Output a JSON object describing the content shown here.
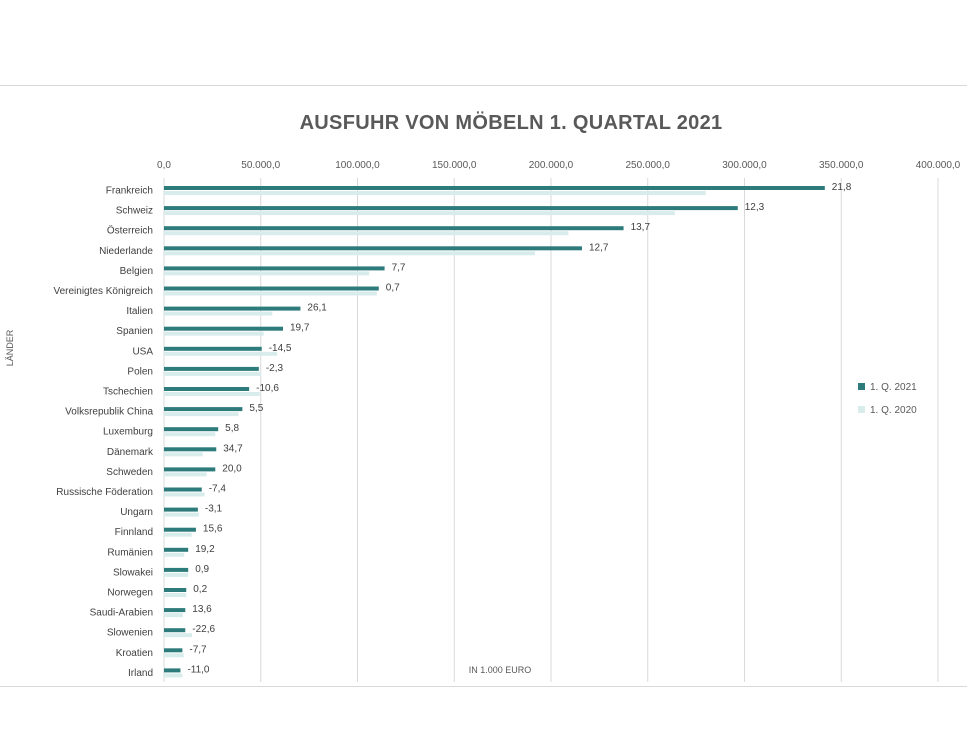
{
  "chart_data": {
    "type": "bar",
    "orientation": "horizontal",
    "title": "AUSFUHR VON MÖBELN 1. QUARTAL 2021",
    "ylabel": "LÄNDER",
    "xlabel": "IN 1.000 EURO",
    "xlim": [
      0,
      400000
    ],
    "x_ticks": [
      "0,0",
      "50.000,0",
      "100.000,0",
      "150.000,0",
      "200.000,0",
      "250.000,0",
      "300.000,0",
      "350.000,0",
      "400.000,0"
    ],
    "x_tick_values": [
      0,
      50000,
      100000,
      150000,
      200000,
      250000,
      300000,
      350000,
      400000
    ],
    "grid": true,
    "legend_position": "right",
    "categories": [
      "Frankreich",
      "Schweiz",
      "Österreich",
      "Niederlande",
      "Belgien",
      "Vereinigtes Königreich",
      "Italien",
      "Spanien",
      "USA",
      "Polen",
      "Tschechien",
      "Volksrepublik China",
      "Luxemburg",
      "Dänemark",
      "Schweden",
      "Russische Föderation",
      "Ungarn",
      "Finnland",
      "Rumänien",
      "Slowakei",
      "Norwegen",
      "Saudi-Arabien",
      "Slowenien",
      "Kroatien",
      "Irland"
    ],
    "series": [
      {
        "name": "1. Q. 2021",
        "color": "#2e7b7b",
        "values": [
          341500,
          296500,
          237500,
          216000,
          114000,
          111000,
          70500,
          61500,
          50500,
          49000,
          44000,
          40500,
          28000,
          27000,
          26500,
          19500,
          17500,
          16500,
          12500,
          12500,
          11500,
          11000,
          11000,
          9500,
          8500
        ]
      },
      {
        "name": "1. Q. 2020",
        "color": "#d8ecec",
        "values": [
          280000,
          264000,
          209000,
          191700,
          106000,
          110000,
          56000,
          51500,
          58500,
          50200,
          49500,
          38500,
          26500,
          20000,
          22000,
          21000,
          18000,
          14300,
          10500,
          12500,
          11500,
          9700,
          14500,
          10200,
          9500
        ]
      }
    ],
    "data_labels": [
      "21,8",
      "12,3",
      "13,7",
      "12,7",
      "7,7",
      "0,7",
      "26,1",
      "19,7",
      "-14,5",
      "-2,3",
      "-10,6",
      "5,5",
      "5,8",
      "34,7",
      "20,0",
      "-7,4",
      "-3,1",
      "15,6",
      "19,2",
      "0,9",
      "0,2",
      "13,6",
      "-22,6",
      "-7,7",
      "-11,0"
    ]
  }
}
